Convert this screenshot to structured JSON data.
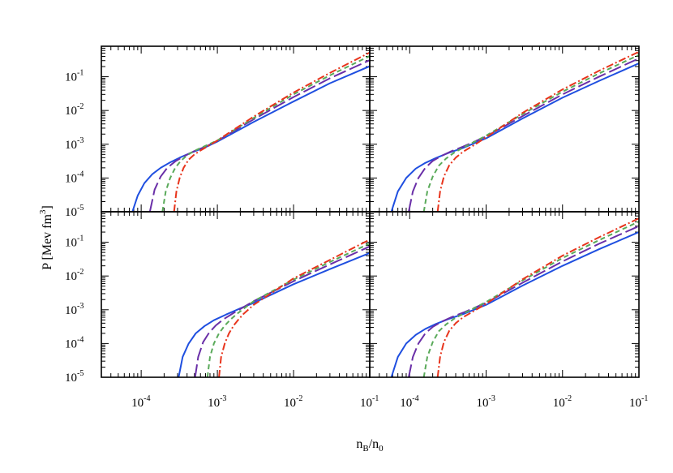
{
  "figure": {
    "ylabel": "P [Mev fm",
    "ylabel_sup": "3",
    "ylabel_tail": "]",
    "xlabel_main": "n",
    "xlabel_sub1": "B",
    "xlabel_mid": "/n",
    "xlabel_sub2": "0"
  },
  "chart_data": [
    {
      "type": "line",
      "panel": "top-left",
      "x_scale": "log",
      "y_scale": "log",
      "xlim": [
        3e-05,
        0.1
      ],
      "ylim": [
        1e-05,
        0.8
      ],
      "series": [
        {
          "color": "#1f4fe0",
          "dash": "solid",
          "x": [
            7.67e-05,
            9e-05,
            0.00011,
            0.00014,
            0.00018,
            0.00024,
            0.00032,
            0.00045,
            0.0007,
            0.001,
            0.003,
            0.01,
            0.03,
            0.1
          ],
          "y": [
            1e-05,
            3e-05,
            7e-05,
            0.00013,
            0.0002,
            0.00029,
            0.0004,
            0.00056,
            0.00082,
            0.0012,
            0.0046,
            0.0185,
            0.064,
            0.205
          ]
        },
        {
          "color": "#6a2fa8",
          "dash": "long-dash",
          "x": [
            0.00013,
            0.00015,
            0.00018,
            0.00022,
            0.00028,
            0.00035,
            0.0005,
            0.0007,
            0.001,
            0.003,
            0.01,
            0.03,
            0.1
          ],
          "y": [
            1e-05,
            4.5e-05,
            0.00011,
            0.0002,
            0.00031,
            0.00042,
            0.00063,
            0.00085,
            0.00125,
            0.0055,
            0.025,
            0.09,
            0.31
          ]
        },
        {
          "color": "#5aaa5a",
          "dash": "short-dash",
          "x": [
            0.00019,
            0.00021,
            0.00024,
            0.00028,
            0.00033,
            0.0004,
            0.0005,
            0.0007,
            0.001,
            0.003,
            0.01,
            0.03,
            0.1
          ],
          "y": [
            1e-05,
            4e-05,
            0.0001,
            0.0002,
            0.00032,
            0.00047,
            0.00064,
            0.0009,
            0.0013,
            0.006,
            0.03,
            0.11,
            0.41
          ]
        },
        {
          "color": "#e8341c",
          "dash": "dash-dot",
          "x": [
            0.00027,
            0.00029,
            0.00032,
            0.00036,
            0.00042,
            0.0005,
            0.0006,
            0.0008,
            0.001,
            0.003,
            0.01,
            0.03,
            0.1
          ],
          "y": [
            1e-05,
            4e-05,
            0.0001,
            0.0002,
            0.00035,
            0.0005,
            0.00065,
            0.00095,
            0.0013,
            0.0066,
            0.034,
            0.13,
            0.52
          ]
        }
      ]
    },
    {
      "type": "line",
      "panel": "top-right",
      "x_scale": "log",
      "y_scale": "log",
      "xlim": [
        3e-05,
        0.1
      ],
      "ylim": [
        1e-05,
        0.8
      ],
      "series": [
        {
          "color": "#1f4fe0",
          "dash": "solid",
          "x": [
            5.75e-05,
            7e-05,
            9e-05,
            0.00012,
            0.00016,
            0.00022,
            0.00032,
            0.0005,
            0.001,
            0.003,
            0.01,
            0.03,
            0.1
          ],
          "y": [
            1e-05,
            4e-05,
            0.0001,
            0.00019,
            0.00028,
            0.00039,
            0.00055,
            0.00078,
            0.0015,
            0.0058,
            0.024,
            0.075,
            0.25
          ]
        },
        {
          "color": "#6a2fa8",
          "dash": "long-dash",
          "x": [
            9.7e-05,
            0.00011,
            0.00013,
            0.00016,
            0.0002,
            0.00026,
            0.00035,
            0.0005,
            0.001,
            0.003,
            0.01,
            0.03,
            0.1
          ],
          "y": [
            1e-05,
            4e-05,
            0.0001,
            0.0002,
            0.00032,
            0.00045,
            0.00062,
            0.00085,
            0.0017,
            0.0068,
            0.03,
            0.1,
            0.35
          ]
        },
        {
          "color": "#5aaa5a",
          "dash": "short-dash",
          "x": [
            0.000153,
            0.00017,
            0.0002,
            0.00024,
            0.0003,
            0.00038,
            0.0005,
            0.001,
            0.003,
            0.01,
            0.03,
            0.1
          ],
          "y": [
            1e-05,
            4e-05,
            0.00011,
            0.00023,
            0.00038,
            0.00056,
            0.00079,
            0.0018,
            0.0078,
            0.036,
            0.125,
            0.44
          ]
        },
        {
          "color": "#e8341c",
          "dash": "dash-dot",
          "x": [
            0.000232,
            0.00025,
            0.00028,
            0.00033,
            0.0004,
            0.0005,
            0.0007,
            0.001,
            0.003,
            0.01,
            0.03,
            0.1
          ],
          "y": [
            1e-05,
            4e-05,
            0.00011,
            0.00024,
            0.0004,
            0.0006,
            0.00095,
            0.0016,
            0.0085,
            0.042,
            0.15,
            0.55
          ]
        }
      ]
    },
    {
      "type": "line",
      "panel": "bottom-left",
      "x_scale": "log",
      "y_scale": "log",
      "xlim": [
        3e-05,
        0.1
      ],
      "ylim": [
        1e-05,
        0.8
      ],
      "series": [
        {
          "color": "#1f4fe0",
          "dash": "solid",
          "x": [
            0.00031,
            0.00035,
            0.00042,
            0.00052,
            0.00068,
            0.0009,
            0.0013,
            0.002,
            0.003,
            0.01,
            0.03,
            0.1
          ],
          "y": [
            1e-05,
            4e-05,
            0.0001,
            0.0002,
            0.00033,
            0.00049,
            0.00072,
            0.0011,
            0.0016,
            0.0057,
            0.016,
            0.048
          ]
        },
        {
          "color": "#6a2fa8",
          "dash": "long-dash",
          "x": [
            0.00051,
            0.00056,
            0.00065,
            0.00078,
            0.00095,
            0.0012,
            0.0016,
            0.002,
            0.003,
            0.01,
            0.03,
            0.1
          ],
          "y": [
            1e-05,
            4e-05,
            0.00011,
            0.00021,
            0.00034,
            0.00052,
            0.00078,
            0.00105,
            0.0018,
            0.007,
            0.022,
            0.075
          ]
        },
        {
          "color": "#5aaa5a",
          "dash": "short-dash",
          "x": [
            0.00074,
            0.0008,
            0.0009,
            0.00105,
            0.00125,
            0.0015,
            0.0018,
            0.002,
            0.003,
            0.01,
            0.03,
            0.1
          ],
          "y": [
            1e-05,
            4e-05,
            0.0001,
            0.0002,
            0.00034,
            0.00052,
            0.00075,
            0.0009,
            0.0018,
            0.0078,
            0.026,
            0.092
          ]
        },
        {
          "color": "#e8341c",
          "dash": "dash-dot",
          "x": [
            0.00105,
            0.00112,
            0.00125,
            0.00142,
            0.00165,
            0.0019,
            0.0022,
            0.003,
            0.01,
            0.03,
            0.1
          ],
          "y": [
            1e-05,
            4e-05,
            0.0001,
            0.0002,
            0.00035,
            0.00052,
            0.00075,
            0.0014,
            0.0085,
            0.03,
            0.12
          ]
        }
      ]
    },
    {
      "type": "line",
      "panel": "bottom-right",
      "x_scale": "log",
      "y_scale": "log",
      "xlim": [
        3e-05,
        0.1
      ],
      "ylim": [
        1e-05,
        0.8
      ],
      "series": [
        {
          "color": "#1f4fe0",
          "dash": "solid",
          "x": [
            5.75e-05,
            7e-05,
            9e-05,
            0.00012,
            0.00016,
            0.00022,
            0.00032,
            0.0005,
            0.001,
            0.003,
            0.01,
            0.03,
            0.1
          ],
          "y": [
            1e-05,
            4e-05,
            0.0001,
            0.00018,
            0.00027,
            0.00038,
            0.00053,
            0.00074,
            0.0014,
            0.0052,
            0.02,
            0.062,
            0.2
          ]
        },
        {
          "color": "#6a2fa8",
          "dash": "long-dash",
          "x": [
            9.7e-05,
            0.00011,
            0.00013,
            0.00016,
            0.0002,
            0.00026,
            0.00035,
            0.0005,
            0.001,
            0.003,
            0.01,
            0.03,
            0.1
          ],
          "y": [
            1e-05,
            4e-05,
            0.0001,
            0.0002,
            0.00031,
            0.00044,
            0.0006,
            0.00082,
            0.0016,
            0.0063,
            0.027,
            0.09,
            0.3
          ]
        },
        {
          "color": "#5aaa5a",
          "dash": "short-dash",
          "x": [
            0.000153,
            0.00017,
            0.0002,
            0.00024,
            0.0003,
            0.00038,
            0.0005,
            0.001,
            0.003,
            0.01,
            0.03,
            0.1
          ],
          "y": [
            1e-05,
            4e-05,
            0.00011,
            0.00023,
            0.00037,
            0.00054,
            0.00076,
            0.0017,
            0.0074,
            0.034,
            0.115,
            0.41
          ]
        },
        {
          "color": "#e8341c",
          "dash": "dash-dot",
          "x": [
            0.000232,
            0.00025,
            0.00028,
            0.00033,
            0.0004,
            0.0005,
            0.0007,
            0.001,
            0.003,
            0.01,
            0.03,
            0.1
          ],
          "y": [
            1e-05,
            4e-05,
            0.00011,
            0.00024,
            0.0004,
            0.0006,
            0.00093,
            0.0015,
            0.008,
            0.04,
            0.14,
            0.51
          ]
        }
      ]
    }
  ],
  "y_ticks": [
    {
      "base": "10",
      "exp": "-1",
      "value": 0.1
    },
    {
      "base": "10",
      "exp": "-2",
      "value": 0.01
    },
    {
      "base": "10",
      "exp": "-3",
      "value": 0.001
    },
    {
      "base": "10",
      "exp": "-4",
      "value": 0.0001
    },
    {
      "base": "10",
      "exp": "-5",
      "value": 1e-05
    }
  ],
  "x_ticks": [
    {
      "base": "10",
      "exp": "-4",
      "value": 0.0001
    },
    {
      "base": "10",
      "exp": "-3",
      "value": 0.001
    },
    {
      "base": "10",
      "exp": "-2",
      "value": 0.01
    },
    {
      "base": "10",
      "exp": "-1",
      "value": 0.1
    }
  ]
}
